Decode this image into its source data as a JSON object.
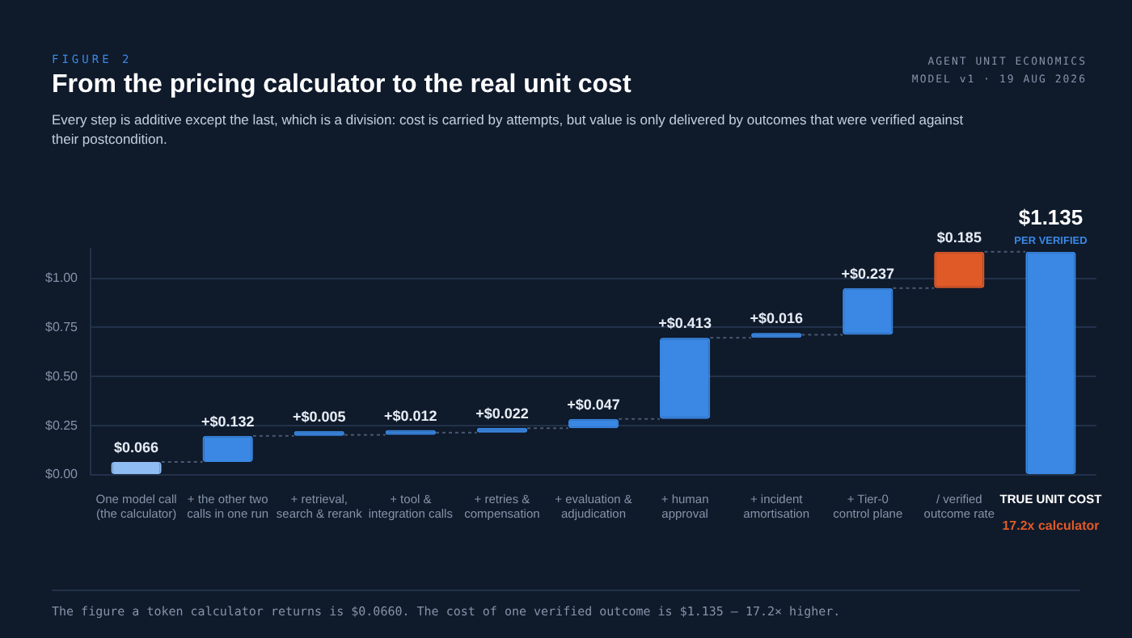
{
  "chart_data": {
    "type": "bar",
    "title": "From the pricing calculator to the real unit cost",
    "subtitle": "Every step is additive except the last, which is a division: cost is carried by attempts, but value is only delivered by outcomes that were verified against their postcondition.",
    "categories": [
      "One model call\n(the calculator)",
      "+ the other two\ncalls in one run",
      "+ retrieval,\nsearch & rerank",
      "+ tool &\nintegration calls",
      "+ retries &\ncompensation",
      "+ evaluation &\nadjudication",
      "+ human\napproval",
      "+ incident\namortisation",
      "+ Tier-0\ncontrol plane",
      "/ verified\noutcome rate",
      "TRUE UNIT COST"
    ],
    "values": [
      0.066,
      0.132,
      0.005,
      0.012,
      0.022,
      0.047,
      0.413,
      0.016,
      0.237,
      0.185,
      1.135
    ],
    "base": [
      0,
      0.066,
      0.198,
      0.203,
      0.215,
      0.237,
      0.284,
      0.697,
      0.713,
      0.95,
      0
    ],
    "colors": [
      "#8fbcf2",
      "#3a88e4",
      "#3a88e4",
      "#3a88e4",
      "#3a88e4",
      "#3a88e4",
      "#3a88e4",
      "#3a88e4",
      "#3a88e4",
      "#e05a28",
      "#3a88e4"
    ],
    "value_labels": [
      "$0.066",
      "+$0.132",
      "+$0.005",
      "+$0.012",
      "+$0.022",
      "+$0.047",
      "+$0.413",
      "+$0.016",
      "+$0.237",
      "$0.185",
      "$1.135"
    ],
    "ylim": [
      0,
      1.15
    ],
    "yticks": [
      {
        "value": 0,
        "label": "$0.00"
      },
      {
        "value": 0.25,
        "label": "$0.25"
      },
      {
        "value": 0.5,
        "label": "$0.50"
      },
      {
        "value": 0.75,
        "label": "$0.75"
      },
      {
        "value": 1,
        "label": "$1.00"
      }
    ],
    "grid": "y",
    "legend": false,
    "annotations": [
      "FIGURE 2",
      "AGENT UNIT ECONOMICS",
      "MODEL v1 · 19 AUG 2026",
      {
        "text": "PER VERIFIED",
        "x": "TRUE UNIT COST",
        "y": 1.135
      },
      "17.2x calculator",
      "The figure a token calculator returns is $0.0660. The cost of one verified outcome is $1.135 — 17.2× higher."
    ]
  }
}
